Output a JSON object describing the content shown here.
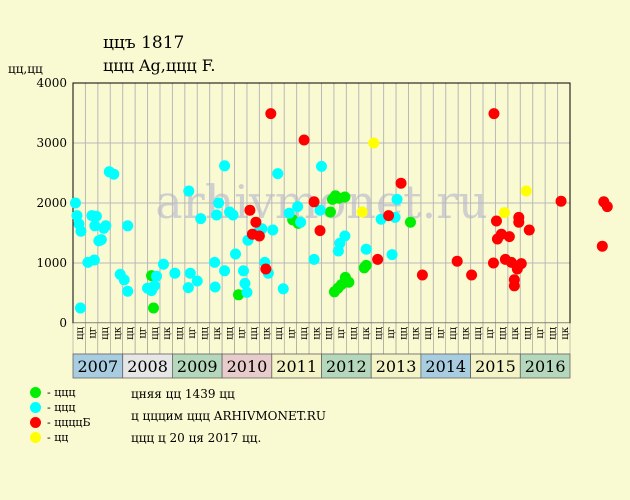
{
  "header": {
    "title": "ццъ 1817",
    "subtitle": "ццц Ag,ццц F.",
    "yunit": "цц,цц"
  },
  "watermark": "arhivmonet.ru",
  "legend": [
    {
      "label": "- ццц",
      "color": "#00ee00"
    },
    {
      "label": "- ццц",
      "color": "#00ffff"
    },
    {
      "label": "- ццццБ",
      "color": "#ff0000"
    },
    {
      "label": "- цц",
      "color": "#ffff00"
    }
  ],
  "notes": [
    "цняя цц 1439 цц",
    "ц цццим ццц ARHIVMONET.RU",
    "ццц ц 20 ця 2017 цц."
  ],
  "chart_data": {
    "type": "scatter",
    "ylim": [
      0,
      4000
    ],
    "yticks": [
      0,
      1000,
      2000,
      3000,
      4000
    ],
    "grid": true,
    "quarter_labels": [
      "цц",
      "цг",
      "цц",
      "цк"
    ],
    "years": [
      {
        "label": "2007",
        "color": "#a8cce0"
      },
      {
        "label": "2008",
        "color": "#e6e6e6"
      },
      {
        "label": "2009",
        "color": "#b5d8bc"
      },
      {
        "label": "2010",
        "color": "#e8cccc"
      },
      {
        "label": "2011",
        "color": "#f3f3c6"
      },
      {
        "label": "2012",
        "color": "#b5d8bc"
      },
      {
        "label": "2013",
        "color": "#f3f3c6"
      },
      {
        "label": "2014",
        "color": "#a8cce0"
      },
      {
        "label": "2015",
        "color": "#f3f3c6"
      },
      {
        "label": "2016",
        "color": "#b5d8bc"
      }
    ],
    "series": [
      {
        "color": "#00ee00",
        "points": [
          [
            2008.58,
            790
          ],
          [
            2008.62,
            250
          ],
          [
            2010.33,
            470
          ],
          [
            2011.42,
            1720
          ],
          [
            2011.53,
            1660
          ],
          [
            2012.18,
            1850
          ],
          [
            2012.22,
            2060
          ],
          [
            2012.28,
            2120
          ],
          [
            2012.35,
            2080
          ],
          [
            2012.47,
            2100
          ],
          [
            2012.26,
            520
          ],
          [
            2012.33,
            580
          ],
          [
            2012.4,
            640
          ],
          [
            2012.48,
            760
          ],
          [
            2012.55,
            680
          ],
          [
            2012.86,
            920
          ],
          [
            2012.9,
            960
          ],
          [
            2013.79,
            1680
          ]
        ]
      },
      {
        "color": "#00ffff",
        "points": [
          [
            2007.05,
            2000
          ],
          [
            2007.08,
            1790
          ],
          [
            2007.12,
            1650
          ],
          [
            2007.16,
            1530
          ],
          [
            2007.15,
            250
          ],
          [
            2007.3,
            1010
          ],
          [
            2007.43,
            1050
          ],
          [
            2007.38,
            1790
          ],
          [
            2007.47,
            1780
          ],
          [
            2007.44,
            1620
          ],
          [
            2007.52,
            1370
          ],
          [
            2007.57,
            1390
          ],
          [
            2007.62,
            1580
          ],
          [
            2007.66,
            1620
          ],
          [
            2007.73,
            2520
          ],
          [
            2007.82,
            2480
          ],
          [
            2007.95,
            810
          ],
          [
            2008.03,
            720
          ],
          [
            2008.1,
            530
          ],
          [
            2008.1,
            1620
          ],
          [
            2008.5,
            580
          ],
          [
            2008.58,
            540
          ],
          [
            2008.64,
            620
          ],
          [
            2008.68,
            780
          ],
          [
            2008.82,
            980
          ],
          [
            2009.05,
            830
          ],
          [
            2009.32,
            590
          ],
          [
            2009.36,
            830
          ],
          [
            2009.33,
            2200
          ],
          [
            2009.5,
            700
          ],
          [
            2009.57,
            1740
          ],
          [
            2009.85,
            1010
          ],
          [
            2009.86,
            600
          ],
          [
            2009.89,
            1800
          ],
          [
            2009.93,
            2000
          ],
          [
            2010.05,
            2620
          ],
          [
            2010.05,
            870
          ],
          [
            2010.15,
            1850
          ],
          [
            2010.22,
            1800
          ],
          [
            2010.27,
            1150
          ],
          [
            2010.43,
            870
          ],
          [
            2010.46,
            660
          ],
          [
            2010.5,
            510
          ],
          [
            2010.52,
            1380
          ],
          [
            2010.72,
            1510
          ],
          [
            2010.8,
            1570
          ],
          [
            2010.86,
            1010
          ],
          [
            2010.93,
            830
          ],
          [
            2011.02,
            1550
          ],
          [
            2011.12,
            2490
          ],
          [
            2011.23,
            570
          ],
          [
            2011.35,
            1830
          ],
          [
            2011.52,
            1940
          ],
          [
            2011.58,
            1680
          ],
          [
            2011.85,
            1060
          ],
          [
            2011.97,
            1880
          ],
          [
            2012.0,
            2610
          ],
          [
            2012.34,
            1200
          ],
          [
            2012.37,
            1330
          ],
          [
            2012.47,
            1450
          ],
          [
            2012.9,
            1230
          ],
          [
            2013.2,
            1730
          ],
          [
            2013.42,
            1140
          ],
          [
            2013.48,
            1760
          ],
          [
            2013.52,
            2060
          ]
        ]
      },
      {
        "color": "#ff0000",
        "points": [
          [
            2010.56,
            1880
          ],
          [
            2010.61,
            1480
          ],
          [
            2010.68,
            1680
          ],
          [
            2010.75,
            1450
          ],
          [
            2010.88,
            900
          ],
          [
            2010.98,
            3490
          ],
          [
            2011.65,
            3050
          ],
          [
            2011.85,
            2020
          ],
          [
            2011.97,
            1540
          ],
          [
            2013.13,
            1060
          ],
          [
            2013.35,
            1790
          ],
          [
            2013.6,
            2330
          ],
          [
            2014.03,
            800
          ],
          [
            2014.73,
            1030
          ],
          [
            2015.02,
            800
          ],
          [
            2015.47,
            3490
          ],
          [
            2015.46,
            1000
          ],
          [
            2015.52,
            1700
          ],
          [
            2015.54,
            1400
          ],
          [
            2015.62,
            1480
          ],
          [
            2015.7,
            1060
          ],
          [
            2015.78,
            1440
          ],
          [
            2015.82,
            1010
          ],
          [
            2015.88,
            720
          ],
          [
            2015.88,
            620
          ],
          [
            2015.94,
            900
          ],
          [
            2015.97,
            1760
          ],
          [
            2015.97,
            1680
          ],
          [
            2016.02,
            990
          ],
          [
            2016.18,
            1550
          ],
          [
            2016.82,
            2030
          ],
          [
            2017.65,
            1280
          ],
          [
            2017.68,
            2020
          ],
          [
            2017.75,
            1940
          ]
        ]
      },
      {
        "color": "#ffff00",
        "points": [
          [
            2012.82,
            1850
          ],
          [
            2013.05,
            3000
          ],
          [
            2015.68,
            1840
          ],
          [
            2016.12,
            2200
          ]
        ]
      }
    ]
  }
}
